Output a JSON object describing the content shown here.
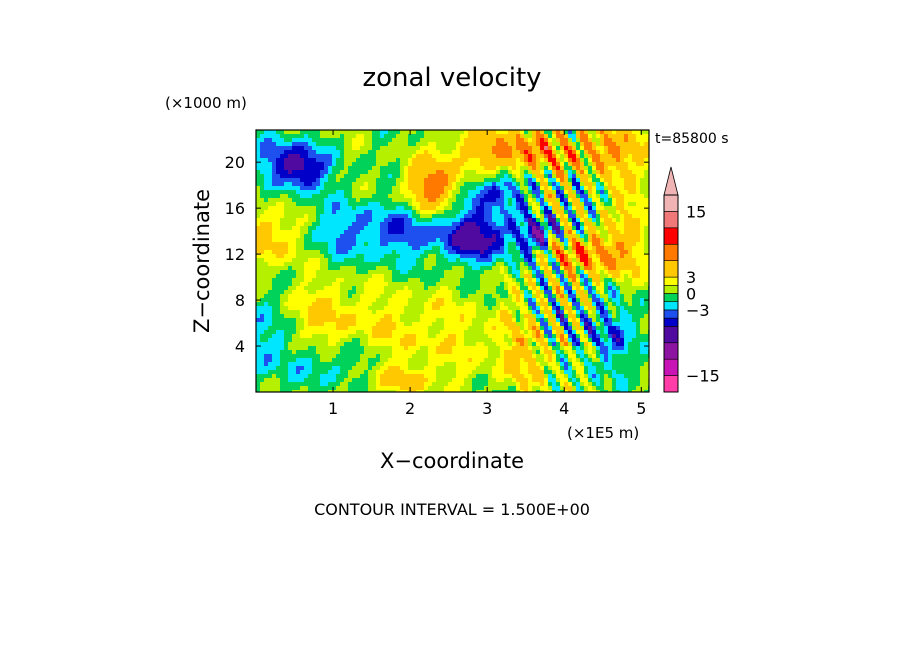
{
  "chart_data": {
    "type": "heatmap",
    "title": "zonal velocity",
    "xlabel": "X−coordinate",
    "ylabel": "Z−coordinate",
    "x_unit": "(×1E5 m)",
    "y_unit": "(×1000 m)",
    "time_label": "t=85800 s",
    "footer": "CONTOUR INTERVAL = 1.500E+00",
    "xlim": [
      0,
      5.1
    ],
    "ylim": [
      0,
      22.8
    ],
    "x_ticks": [
      1,
      2,
      3,
      4,
      5
    ],
    "y_ticks": [
      4,
      8,
      12,
      16,
      20
    ],
    "colorbar": {
      "labels": [
        "15",
        "3",
        "0",
        "−3",
        "−15"
      ],
      "label_values": [
        15,
        3,
        0,
        -3,
        -15
      ],
      "levels": [
        -18,
        -15,
        -12,
        -9,
        -6,
        -4.5,
        -3,
        -1.5,
        0,
        1.5,
        3,
        6,
        9,
        12,
        15,
        18
      ],
      "colors": [
        "#ff3ca8",
        "#c814b4",
        "#8c14a0",
        "#500aa0",
        "#0000c8",
        "#1e50f0",
        "#00e6ff",
        "#00d25a",
        "#b4f000",
        "#ffff00",
        "#ffc800",
        "#ff7800",
        "#ff0000",
        "#f07878",
        "#f0b4b4"
      ],
      "extend": "max"
    }
  }
}
